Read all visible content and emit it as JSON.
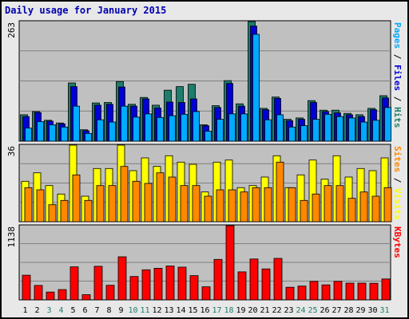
{
  "title": "Daily usage for January 2015",
  "colors": {
    "panel_bg": "#c0c0c0",
    "hits": "#1e7d6b",
    "files": "#0000d6",
    "pages": "#00aaff",
    "visits": "#ffff00",
    "sites": "#ff8800",
    "kbytes": "#ff0000",
    "weekday_label": "#000000",
    "weekend_label": "#1e7d6b",
    "title": "#0000b0"
  },
  "chart_data": [
    {
      "type": "bar",
      "panel": "hits-files-pages",
      "ymax_label": "263",
      "ylim": [
        0,
        263
      ],
      "right_labels": [
        {
          "text": "Pages",
          "color": "#00aaff"
        },
        {
          "text": " / ",
          "color": "#000000"
        },
        {
          "text": "Files",
          "color": "#0000d6"
        },
        {
          "text": " / ",
          "color": "#000000"
        },
        {
          "text": "Hits",
          "color": "#1e7d6b"
        }
      ],
      "series": [
        {
          "name": "Hits",
          "color": "#1e7d6b",
          "values": [
            58,
            65,
            46,
            40,
            128,
            25,
            84,
            85,
            131,
            81,
            96,
            79,
            112,
            120,
            125,
            36,
            78,
            133,
            82,
            263,
            72,
            97,
            48,
            51,
            89,
            68,
            68,
            61,
            58,
            72,
            100
          ]
        },
        {
          "name": "Files",
          "color": "#0000d6",
          "values": [
            54,
            63,
            44,
            38,
            120,
            23,
            79,
            81,
            119,
            77,
            93,
            73,
            86,
            85,
            93,
            34,
            74,
            127,
            77,
            253,
            69,
            94,
            45,
            48,
            85,
            65,
            62,
            58,
            54,
            69,
            95
          ]
        },
        {
          "name": "Pages",
          "color": "#00aaff",
          "values": [
            29,
            43,
            36,
            31,
            77,
            17,
            47,
            42,
            77,
            53,
            60,
            52,
            56,
            59,
            65,
            22,
            48,
            60,
            60,
            235,
            47,
            58,
            31,
            34,
            48,
            59,
            54,
            51,
            42,
            46,
            74
          ]
        }
      ]
    },
    {
      "type": "bar",
      "panel": "visits-sites",
      "ymax_label": "36",
      "ylim": [
        0,
        36
      ],
      "right_labels": [
        {
          "text": "Sites",
          "color": "#ff8800"
        },
        {
          "text": " / ",
          "color": "#000000"
        },
        {
          "text": "Visits",
          "color": "#ffff00"
        }
      ],
      "series": [
        {
          "name": "Visits",
          "color": "#ffff00",
          "values": [
            19,
            23,
            17,
            13,
            36,
            12,
            25,
            25,
            36,
            24,
            30,
            26,
            31,
            28,
            27,
            14,
            28,
            29,
            16,
            17,
            21,
            31,
            16,
            22,
            29,
            20,
            31,
            21,
            25,
            24,
            30
          ]
        },
        {
          "name": "Sites",
          "color": "#ff8800",
          "values": [
            16,
            15,
            8,
            10,
            22,
            10,
            17,
            17,
            26,
            19,
            18,
            23,
            21,
            17,
            17,
            12,
            15,
            15,
            14,
            16,
            16,
            28,
            16,
            10,
            13,
            17,
            17,
            11,
            14,
            12,
            16
          ]
        }
      ]
    },
    {
      "type": "bar",
      "panel": "kbytes",
      "ymax_label": "1138",
      "ylim": [
        0,
        1138
      ],
      "right_labels": [
        {
          "text": "KBytes",
          "color": "#ff0000"
        }
      ],
      "series": [
        {
          "name": "KBytes",
          "color": "#ff0000",
          "values": [
            378,
            222,
            120,
            158,
            507,
            80,
            515,
            224,
            661,
            358,
            461,
            485,
            520,
            502,
            372,
            201,
            621,
            1138,
            430,
            626,
            475,
            636,
            193,
            212,
            284,
            230,
            284,
            257,
            257,
            254,
            320
          ]
        }
      ]
    }
  ],
  "x_axis": {
    "labels": [
      {
        "text": "1",
        "weekend": false
      },
      {
        "text": "2",
        "weekend": false
      },
      {
        "text": "3",
        "weekend": true
      },
      {
        "text": "4",
        "weekend": true
      },
      {
        "text": "5",
        "weekend": false
      },
      {
        "text": "6",
        "weekend": false
      },
      {
        "text": "7",
        "weekend": false
      },
      {
        "text": "8",
        "weekend": false
      },
      {
        "text": "9",
        "weekend": false
      },
      {
        "text": "10",
        "weekend": true
      },
      {
        "text": "11",
        "weekend": true
      },
      {
        "text": "12",
        "weekend": false
      },
      {
        "text": "13",
        "weekend": false
      },
      {
        "text": "14",
        "weekend": false
      },
      {
        "text": "15",
        "weekend": false
      },
      {
        "text": "16",
        "weekend": false
      },
      {
        "text": "17",
        "weekend": true
      },
      {
        "text": "18",
        "weekend": true
      },
      {
        "text": "19",
        "weekend": false
      },
      {
        "text": "20",
        "weekend": false
      },
      {
        "text": "21",
        "weekend": false
      },
      {
        "text": "22",
        "weekend": false
      },
      {
        "text": "23",
        "weekend": false
      },
      {
        "text": "24",
        "weekend": true
      },
      {
        "text": "25",
        "weekend": true
      },
      {
        "text": "26",
        "weekend": false
      },
      {
        "text": "27",
        "weekend": false
      },
      {
        "text": "28",
        "weekend": false
      },
      {
        "text": "29",
        "weekend": false
      },
      {
        "text": "30",
        "weekend": false
      },
      {
        "text": "31",
        "weekend": true
      }
    ]
  }
}
